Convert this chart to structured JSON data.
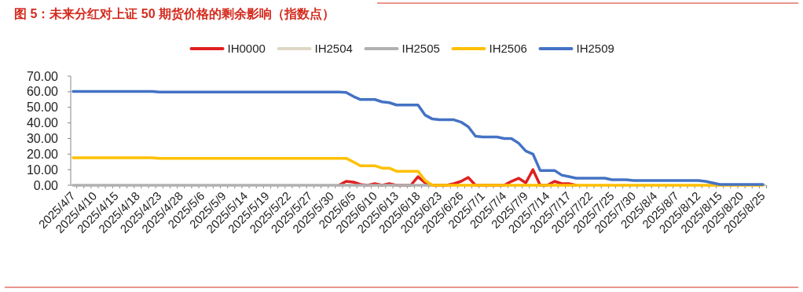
{
  "chart_data": {
    "type": "line",
    "title": "图 5：未来分红对上证 50 期货价格的剩余影响（指数点）",
    "categories": [
      "2025/4/7",
      null,
      null,
      "2025/4/10",
      null,
      null,
      "2025/4/15",
      null,
      null,
      "2025/4/18",
      null,
      null,
      "2025/4/23",
      null,
      null,
      "2025/4/28",
      null,
      null,
      "2025/5/6",
      null,
      null,
      "2025/5/9",
      null,
      null,
      "2025/5/14",
      null,
      null,
      "2025/5/19",
      null,
      null,
      "2025/5/22",
      null,
      null,
      "2025/5/27",
      null,
      null,
      "2025/5/30",
      null,
      null,
      "2025/6/5",
      null,
      null,
      "2025/6/10",
      null,
      null,
      "2025/6/13",
      null,
      null,
      "2025/6/18",
      null,
      null,
      "2025/6/23",
      null,
      null,
      "2025/6/26",
      null,
      null,
      "2025/7/1",
      null,
      null,
      "2025/7/4",
      null,
      null,
      "2025/7/9",
      null,
      null,
      "2025/7/14",
      null,
      null,
      "2025/7/17",
      null,
      null,
      "2025/7/22",
      null,
      null,
      "2025/7/25",
      null,
      null,
      "2025/7/30",
      null,
      null,
      "2025/8/4",
      null,
      null,
      "2025/8/7",
      null,
      null,
      "2025/8/12",
      null,
      null,
      "2025/8/15",
      null,
      null,
      "2025/8/20",
      null,
      null,
      "2025/8/25"
    ],
    "series": [
      {
        "name": "IH0000",
        "color": "#e02020",
        "values": [
          null,
          null,
          null,
          null,
          null,
          null,
          null,
          null,
          null,
          null,
          null,
          null,
          null,
          null,
          null,
          null,
          null,
          null,
          null,
          null,
          null,
          null,
          null,
          null,
          null,
          null,
          null,
          null,
          null,
          null,
          null,
          null,
          null,
          null,
          null,
          null,
          null,
          0,
          2.5,
          2,
          0.5,
          0,
          1,
          0,
          1,
          0,
          0,
          0,
          5.5,
          1.5,
          0,
          0,
          0,
          1,
          2.5,
          5,
          0,
          0,
          0,
          0,
          0,
          2.5,
          4.5,
          1.5,
          10,
          0,
          0,
          2.5,
          1,
          1,
          0,
          null,
          null,
          null,
          null,
          null,
          null,
          null,
          null,
          null,
          null,
          null,
          null,
          null,
          null,
          null,
          null,
          null,
          null,
          null,
          null,
          null,
          null,
          null,
          null,
          null,
          null
        ]
      },
      {
        "name": "IH2504",
        "color": "#ddd8c4",
        "values": [
          null,
          null,
          null,
          null,
          null,
          null,
          null,
          null,
          null,
          null,
          null,
          null,
          null,
          null,
          null,
          null,
          null,
          null,
          null,
          null,
          null,
          null,
          null,
          null,
          null,
          null,
          null,
          null,
          null,
          null,
          null,
          null,
          null,
          null,
          null,
          null,
          null,
          null,
          null,
          null,
          null,
          null,
          null,
          null,
          null,
          null,
          null,
          null,
          null,
          null,
          null,
          null,
          null,
          null,
          null,
          null,
          null,
          null,
          null,
          null,
          null,
          null,
          null,
          null,
          null,
          null,
          null,
          null,
          null,
          null,
          null,
          null,
          null,
          null,
          null,
          null,
          null,
          null,
          null,
          null,
          null,
          null,
          null,
          null,
          null,
          null,
          null,
          null,
          null,
          null,
          null,
          null,
          null,
          null,
          null,
          null,
          null
        ]
      },
      {
        "name": "IH2505",
        "color": "#b0b0b0",
        "values": [
          0,
          0,
          0,
          0,
          0,
          0,
          0,
          0,
          0,
          0,
          0,
          0,
          0,
          0,
          0,
          0,
          0,
          0,
          0,
          0,
          0,
          0,
          0,
          0,
          0,
          0,
          0,
          0,
          0,
          0,
          0,
          0,
          0,
          0,
          0,
          0,
          0,
          0,
          0,
          0,
          0,
          0,
          0,
          0,
          0,
          0,
          0,
          0,
          0,
          0,
          0,
          null,
          null,
          null,
          null,
          null,
          null,
          null,
          null,
          null,
          null,
          null,
          null,
          null,
          null,
          null,
          null,
          null,
          null,
          null,
          null,
          null,
          null,
          null,
          null,
          null,
          null,
          null,
          null,
          null,
          null,
          null,
          null,
          null,
          null,
          null,
          null,
          null,
          null,
          null,
          null,
          null,
          null,
          null,
          null,
          null,
          null
        ]
      },
      {
        "name": "IH2506",
        "color": "#ffc000",
        "values": [
          17.6,
          17.6,
          17.6,
          17.6,
          17.6,
          17.6,
          17.6,
          17.6,
          17.6,
          17.6,
          17.6,
          17.6,
          17.3,
          17.3,
          17.3,
          17.3,
          17.3,
          17.3,
          17.3,
          17.3,
          17.3,
          17.3,
          17.3,
          17.3,
          17.3,
          17.3,
          17.3,
          17.3,
          17.3,
          17.3,
          17.3,
          17.3,
          17.3,
          17.3,
          17.3,
          17.3,
          17.3,
          17.3,
          17.3,
          15,
          12.5,
          12.5,
          12.5,
          11,
          11,
          9,
          9,
          9,
          9,
          3,
          0,
          0,
          0,
          0,
          0,
          0,
          0,
          0,
          0,
          0,
          0,
          0,
          0,
          0,
          0,
          0,
          0,
          0,
          0,
          0,
          0,
          0,
          0,
          0,
          0,
          0,
          0,
          0,
          0,
          0,
          0,
          0,
          0,
          0,
          0,
          0,
          0,
          0,
          0,
          0,
          0,
          0,
          0,
          0,
          0,
          0,
          0
        ]
      },
      {
        "name": "IH2509",
        "color": "#4472c4",
        "values": [
          60.2,
          60.2,
          60.2,
          60.2,
          60.2,
          60.2,
          60.2,
          60.2,
          60.2,
          60.2,
          60.2,
          60.2,
          59.8,
          59.8,
          59.8,
          59.8,
          59.8,
          59.8,
          59.8,
          59.8,
          59.8,
          59.8,
          59.8,
          59.8,
          59.8,
          59.8,
          59.8,
          59.8,
          59.8,
          59.8,
          59.8,
          59.8,
          59.8,
          59.8,
          59.8,
          59.8,
          59.8,
          59.8,
          59.6,
          57,
          55,
          55,
          55,
          53.5,
          53,
          51.5,
          51.5,
          51.5,
          51.5,
          45,
          42.5,
          42,
          42,
          42,
          40.5,
          37.5,
          31.5,
          31,
          31,
          31,
          30,
          30,
          27,
          22,
          20,
          9.5,
          9.5,
          9.5,
          6.5,
          5.5,
          4.5,
          4.5,
          4.5,
          4.5,
          4.5,
          3.5,
          3.5,
          3.5,
          3,
          3,
          3,
          3,
          3,
          3,
          3,
          3,
          3,
          3,
          2.5,
          1.5,
          0.5,
          0.5,
          0.5,
          0.5,
          0.5,
          0.5,
          0.5
        ]
      }
    ],
    "ylim": [
      0,
      70
    ],
    "yticks": [
      {
        "value": 0,
        "label": "0.00"
      },
      {
        "value": 10,
        "label": "10.00"
      },
      {
        "value": 20,
        "label": "20.00"
      },
      {
        "value": 30,
        "label": "30.00"
      },
      {
        "value": 40,
        "label": "40.00"
      },
      {
        "value": 50,
        "label": "50.00"
      },
      {
        "value": 60,
        "label": "60.00"
      },
      {
        "value": 70,
        "label": "70.00"
      }
    ],
    "grid": false,
    "legend": "top",
    "line_style": "solid",
    "marker": "none"
  }
}
